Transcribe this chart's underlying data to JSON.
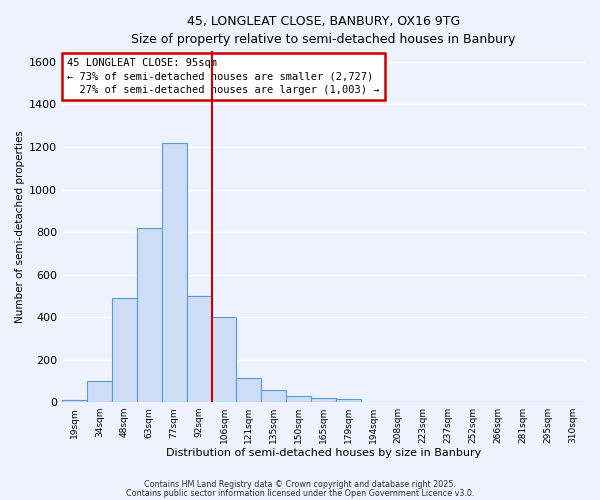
{
  "title_line1": "45, LONGLEAT CLOSE, BANBURY, OX16 9TG",
  "title_line2": "Size of property relative to semi-detached houses in Banbury",
  "xlabel": "Distribution of semi-detached houses by size in Banbury",
  "ylabel": "Number of semi-detached properties",
  "bin_labels": [
    "19sqm",
    "34sqm",
    "48sqm",
    "63sqm",
    "77sqm",
    "92sqm",
    "106sqm",
    "121sqm",
    "135sqm",
    "150sqm",
    "165sqm",
    "179sqm",
    "194sqm",
    "208sqm",
    "223sqm",
    "237sqm",
    "252sqm",
    "266sqm",
    "281sqm",
    "295sqm",
    "310sqm"
  ],
  "bar_values": [
    10,
    100,
    490,
    820,
    1220,
    500,
    400,
    115,
    55,
    30,
    20,
    15,
    0,
    0,
    0,
    0,
    0,
    0,
    0,
    0,
    0
  ],
  "property_bin_index": 5,
  "property_sqm": "95sqm",
  "pct_smaller": 73,
  "pct_larger": 27,
  "count_smaller": "2,727",
  "count_larger": "1,003",
  "bar_facecolor": "#ccddf5",
  "bar_edgecolor": "#5b9bd5",
  "vline_color": "#cc0000",
  "annotation_box_edgecolor": "#cc0000",
  "background_color": "#eef2fc",
  "grid_color": "#ffffff",
  "ylim": [
    0,
    1650
  ],
  "yticks": [
    0,
    200,
    400,
    600,
    800,
    1000,
    1200,
    1400,
    1600
  ],
  "footer_line1": "Contains HM Land Registry data © Crown copyright and database right 2025.",
  "footer_line2": "Contains public sector information licensed under the Open Government Licence v3.0."
}
